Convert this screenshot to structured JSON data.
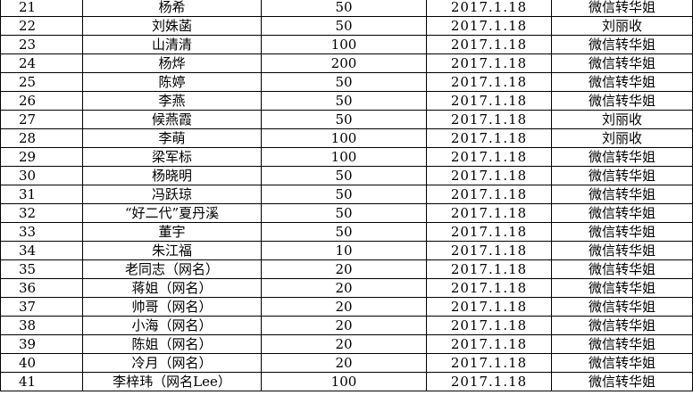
{
  "table": {
    "rows": [
      [
        21,
        "杨希",
        50,
        "2017.1.18",
        "微信转华姐"
      ],
      [
        22,
        "刘姝菡",
        50,
        "2017.1.18",
        "刘丽收"
      ],
      [
        23,
        "山清清",
        100,
        "2017.1.18",
        "微信转华姐"
      ],
      [
        24,
        "杨烨",
        200,
        "2017.1.18",
        "微信转华姐"
      ],
      [
        25,
        "陈婷",
        50,
        "2017.1.18",
        "微信转华姐"
      ],
      [
        26,
        "李燕",
        50,
        "2017.1.18",
        "微信转华姐"
      ],
      [
        27,
        "候燕霞",
        50,
        "2017.1.18",
        "刘丽收"
      ],
      [
        28,
        "李萌",
        100,
        "2017.1.18",
        "刘丽收"
      ],
      [
        29,
        "梁军标",
        100,
        "2017.1.18",
        "微信转华姐"
      ],
      [
        30,
        "杨晓明",
        50,
        "2017.1.18",
        "微信转华姐"
      ],
      [
        31,
        "冯跃琼",
        50,
        "2017.1.18",
        "微信转华姐"
      ],
      [
        32,
        "“好二代”夏丹溪",
        50,
        "2017.1.18",
        "微信转华姐"
      ],
      [
        33,
        "董宇",
        50,
        "2017.1.18",
        "微信转华姐"
      ],
      [
        34,
        "朱江福",
        10,
        "2017.1.18",
        "微信转华姐"
      ],
      [
        35,
        "老同志（网名）",
        20,
        "2017.1.18",
        "微信转华姐"
      ],
      [
        36,
        "蒋姐（网名）",
        20,
        "2017.1.18",
        "微信转华姐"
      ],
      [
        37,
        "帅哥（网名）",
        20,
        "2017.1.18",
        "微信转华姐"
      ],
      [
        38,
        "小海（网名）",
        20,
        "2017.1.18",
        "微信转华姐"
      ],
      [
        39,
        "陈姐（网名）",
        20,
        "2017.1.18",
        "微信转华姐"
      ],
      [
        40,
        "冷月（网名）",
        20,
        "2017.1.18",
        "微信转华姐"
      ],
      [
        41,
        "李梓玮（网名Lee）",
        100,
        "2017.1.18",
        "微信转华姐"
      ]
    ]
  }
}
